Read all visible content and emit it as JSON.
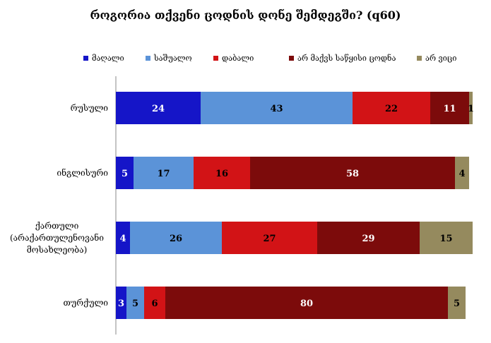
{
  "chart_data": {
    "type": "bar",
    "orientation": "horizontal",
    "stacked": true,
    "title": "როგორია თქვენი ცოდნის დონე შემდეგში? (q60)",
    "legend_position": "top",
    "categories": [
      "რუსული",
      "ინგლისური",
      "ქართული\n(არაქართულენოვანი\nმოსახლეობა)",
      "თურქული"
    ],
    "series": [
      {
        "name": "მაღალი",
        "color": "#1515c8",
        "values": [
          24,
          5,
          4,
          3
        ]
      },
      {
        "name": "საშუალო",
        "color": "#5b93d8",
        "values": [
          43,
          17,
          26,
          5
        ]
      },
      {
        "name": "დაბ‌ალი",
        "color": "#d21316",
        "values": [
          22,
          16,
          27,
          6
        ]
      },
      {
        "name": "არ მაქვს საწყისი ცოდნა",
        "color": "#7c0b0b",
        "values": [
          11,
          58,
          29,
          80
        ]
      },
      {
        "name": "არ ვიცი",
        "color": "#958a5e",
        "values": [
          1,
          4,
          15,
          5
        ]
      }
    ],
    "legend_labels": [
      "მაღალი",
      "საშუალო",
      "დაბ‌ალი",
      "არ მაქვს საწყისი ცოდნა",
      "არ ვიცი"
    ],
    "xlim": [
      0,
      100
    ],
    "grid": false,
    "data_label_colors": [
      "#ffffff",
      "#000000",
      "#000000",
      "#ffffff",
      "#000000"
    ]
  }
}
